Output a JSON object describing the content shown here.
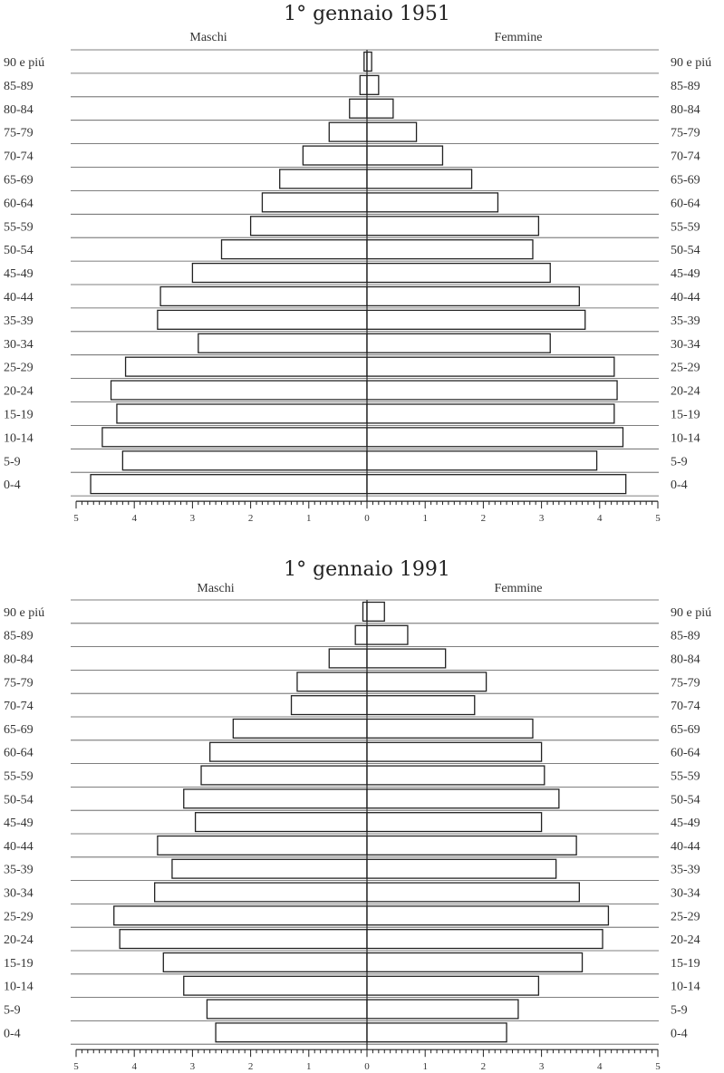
{
  "chart_data": [
    {
      "type": "bar",
      "orientation": "population-pyramid",
      "title": "1° gennaio 1951",
      "left_label": "Maschi",
      "right_label": "Femmine",
      "categories": [
        "0-4",
        "5-9",
        "10-14",
        "15-19",
        "20-24",
        "25-29",
        "30-34",
        "35-39",
        "40-44",
        "45-49",
        "50-54",
        "55-59",
        "60-64",
        "65-69",
        "70-74",
        "75-79",
        "80-84",
        "85-89",
        "90 e piú"
      ],
      "series": [
        {
          "name": "Maschi",
          "values": [
            4.75,
            4.2,
            4.55,
            4.3,
            4.4,
            4.15,
            2.9,
            3.6,
            3.55,
            3.0,
            2.5,
            2.0,
            1.8,
            1.5,
            1.1,
            0.65,
            0.3,
            0.12,
            0.05
          ]
        },
        {
          "name": "Femmine",
          "values": [
            4.45,
            3.95,
            4.4,
            4.25,
            4.3,
            4.25,
            3.15,
            3.75,
            3.65,
            3.15,
            2.85,
            2.95,
            2.25,
            1.8,
            1.3,
            0.85,
            0.45,
            0.2,
            0.08
          ]
        }
      ],
      "xlim": [
        -5,
        5
      ],
      "xticks": [
        "5",
        "4",
        "3",
        "2",
        "1",
        "0",
        "1",
        "2",
        "3",
        "4",
        "5"
      ]
    },
    {
      "type": "bar",
      "orientation": "population-pyramid",
      "title": "1° gennaio 1991",
      "left_label": "Maschi",
      "right_label": "Femmine",
      "categories": [
        "0-4",
        "5-9",
        "10-14",
        "15-19",
        "20-24",
        "25-29",
        "30-34",
        "35-39",
        "40-44",
        "45-49",
        "50-54",
        "55-59",
        "60-64",
        "65-69",
        "70-74",
        "75-79",
        "80-84",
        "85-89",
        "90 e piú"
      ],
      "series": [
        {
          "name": "Maschi",
          "values": [
            2.6,
            2.75,
            3.15,
            3.5,
            4.25,
            4.35,
            3.65,
            3.35,
            3.6,
            2.95,
            3.15,
            2.85,
            2.7,
            2.3,
            1.3,
            1.2,
            0.65,
            0.2,
            0.07
          ]
        },
        {
          "name": "Femmine",
          "values": [
            2.4,
            2.6,
            2.95,
            3.7,
            4.05,
            4.15,
            3.65,
            3.25,
            3.6,
            3.0,
            3.3,
            3.05,
            3.0,
            2.85,
            1.85,
            2.05,
            1.35,
            0.7,
            0.3
          ]
        }
      ],
      "xlim": [
        -5,
        5
      ],
      "xticks": [
        "5",
        "4",
        "3",
        "2",
        "1",
        "0",
        "1",
        "2",
        "3",
        "4",
        "5"
      ]
    }
  ]
}
